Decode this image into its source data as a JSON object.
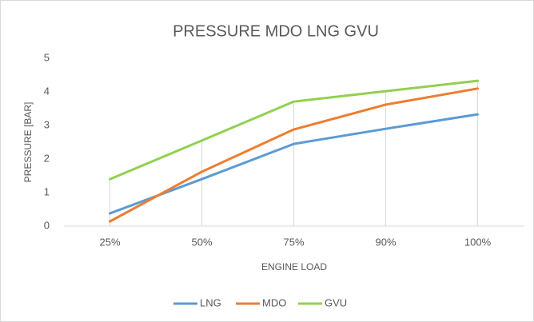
{
  "chart_data": {
    "type": "line",
    "title": "PRESSURE  MDO LNG GVU",
    "x_label": "ENGINE LOAD",
    "y_label": "PRESSURE [BAR]",
    "categories": [
      "25%",
      "50%",
      "75%",
      "90%",
      "100%"
    ],
    "series": [
      {
        "name": "LNG",
        "color": "#5b9bd5",
        "values": [
          0.38,
          1.4,
          2.45,
          2.9,
          3.33
        ]
      },
      {
        "name": "MDO",
        "color": "#ed7d31",
        "values": [
          0.14,
          1.62,
          2.88,
          3.62,
          4.1
        ]
      },
      {
        "name": "GVU",
        "color": "#92d050",
        "values": [
          1.4,
          2.55,
          3.71,
          4.02,
          4.33
        ]
      }
    ],
    "ylim": [
      0,
      5
    ],
    "yticks": [
      0,
      1,
      2,
      3,
      4,
      5
    ],
    "drop_lines": true,
    "legend": "bottom"
  }
}
